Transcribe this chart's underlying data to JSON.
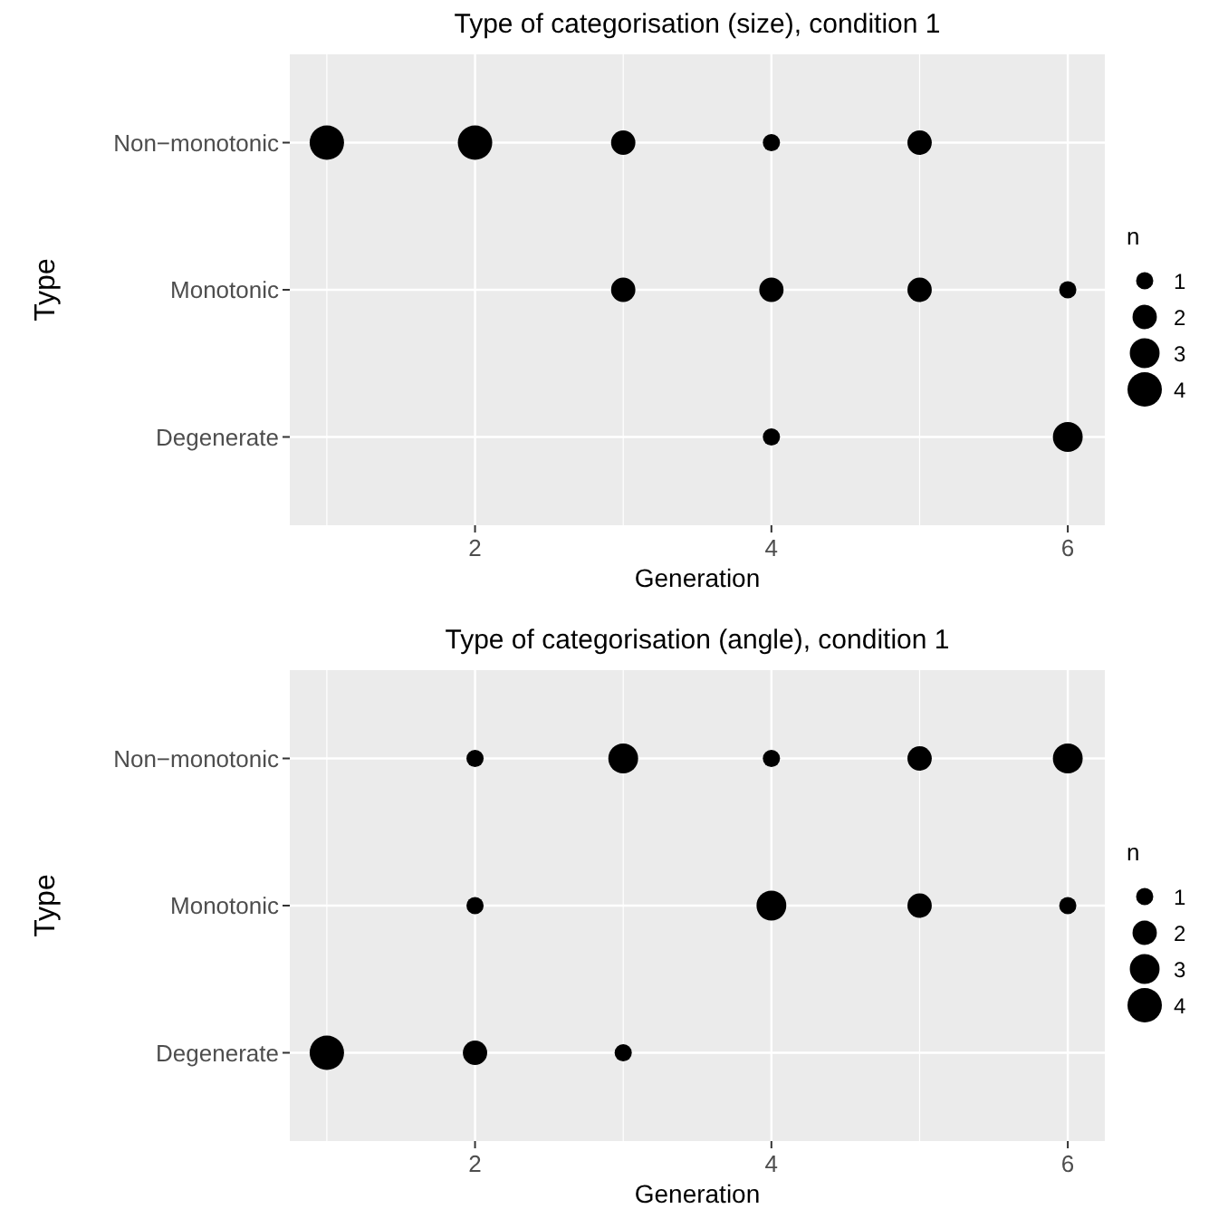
{
  "chart_data": [
    {
      "type": "bubble",
      "orientation": "horizontal",
      "title": "Type of categorisation (size), condition 1",
      "xlabel": "Generation",
      "ylabel": "Type",
      "legend_title": "n",
      "grid": true,
      "xlim": [
        0.75,
        6.25
      ],
      "xticks": [
        2,
        4,
        6
      ],
      "categories": [
        "Non−monotonic",
        "Monotonic",
        "Degenerate"
      ],
      "size_legend": [
        1,
        2,
        3,
        4
      ],
      "series": [
        {
          "color": "#000000",
          "values": [
            1,
            null,
            null
          ],
          "sizes": [
            4,
            null,
            null
          ]
        },
        {
          "color": "#000000",
          "values": [
            2,
            null,
            null
          ],
          "sizes": [
            4,
            null,
            null
          ]
        },
        {
          "color": "#000000",
          "values": [
            3,
            3,
            null
          ],
          "sizes": [
            2,
            2,
            null
          ]
        },
        {
          "color": "#000000",
          "values": [
            4,
            4,
            4
          ],
          "sizes": [
            1,
            2,
            1
          ]
        },
        {
          "color": "#000000",
          "values": [
            5,
            5,
            null
          ],
          "sizes": [
            2,
            2,
            null
          ]
        },
        {
          "color": "#000000",
          "values": [
            null,
            6,
            6
          ],
          "sizes": [
            null,
            1,
            3
          ]
        }
      ]
    },
    {
      "type": "bubble",
      "orientation": "horizontal",
      "title": "Type of categorisation (angle), condition 1",
      "xlabel": "Generation",
      "ylabel": "Type",
      "legend_title": "n",
      "grid": true,
      "xlim": [
        0.75,
        6.25
      ],
      "xticks": [
        2,
        4,
        6
      ],
      "categories": [
        "Non−monotonic",
        "Monotonic",
        "Degenerate"
      ],
      "size_legend": [
        1,
        2,
        3,
        4
      ],
      "series": [
        {
          "color": "#000000",
          "values": [
            null,
            null,
            1
          ],
          "sizes": [
            null,
            null,
            4
          ]
        },
        {
          "color": "#000000",
          "values": [
            2,
            2,
            2
          ],
          "sizes": [
            1,
            1,
            2
          ]
        },
        {
          "color": "#000000",
          "values": [
            3,
            null,
            3
          ],
          "sizes": [
            3,
            null,
            1
          ]
        },
        {
          "color": "#000000",
          "values": [
            4,
            4,
            null
          ],
          "sizes": [
            1,
            3,
            null
          ]
        },
        {
          "color": "#000000",
          "values": [
            5,
            5,
            null
          ],
          "sizes": [
            2,
            2,
            null
          ]
        },
        {
          "color": "#000000",
          "values": [
            6,
            6,
            null
          ],
          "sizes": [
            3,
            1,
            null
          ]
        }
      ]
    }
  ]
}
